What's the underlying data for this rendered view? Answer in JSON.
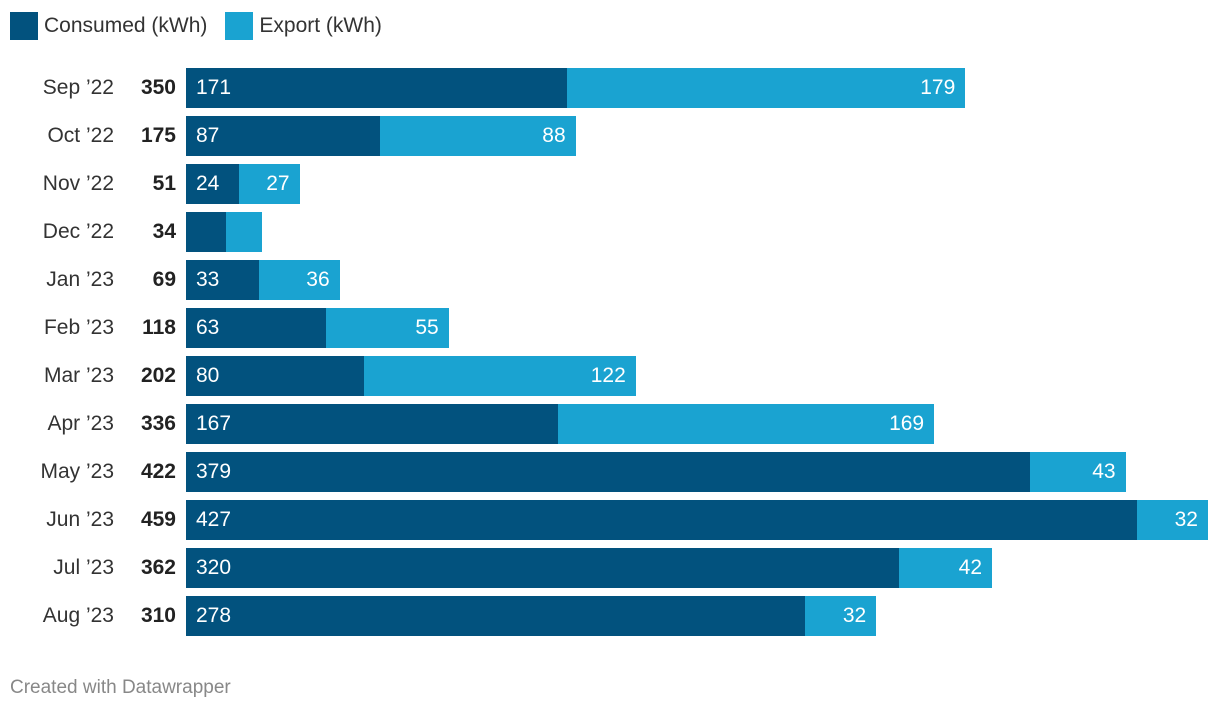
{
  "chart_data": {
    "type": "bar",
    "orientation": "horizontal-stacked",
    "categories": [
      "Sep ’22",
      "Oct ’22",
      "Nov ’22",
      "Dec ’22",
      "Jan ’23",
      "Feb ’23",
      "Mar ’23",
      "Apr ’23",
      "May ’23",
      "Jun ’23",
      "Jul ’23",
      "Aug ’23"
    ],
    "totals": [
      350,
      175,
      51,
      34,
      69,
      118,
      202,
      336,
      422,
      459,
      362,
      310
    ],
    "series": [
      {
        "name": "Consumed (kWh)",
        "color": "#02527e",
        "values": [
          171,
          87,
          24,
          18,
          33,
          63,
          80,
          167,
          379,
          427,
          320,
          278
        ]
      },
      {
        "name": "Export (kWh)",
        "color": "#1aa3d1",
        "values": [
          179,
          88,
          27,
          16,
          36,
          55,
          122,
          169,
          43,
          32,
          42,
          32
        ]
      }
    ],
    "xlim": [
      0,
      459
    ],
    "legend_position": "top-left"
  },
  "footer": "Created with Datawrapper"
}
